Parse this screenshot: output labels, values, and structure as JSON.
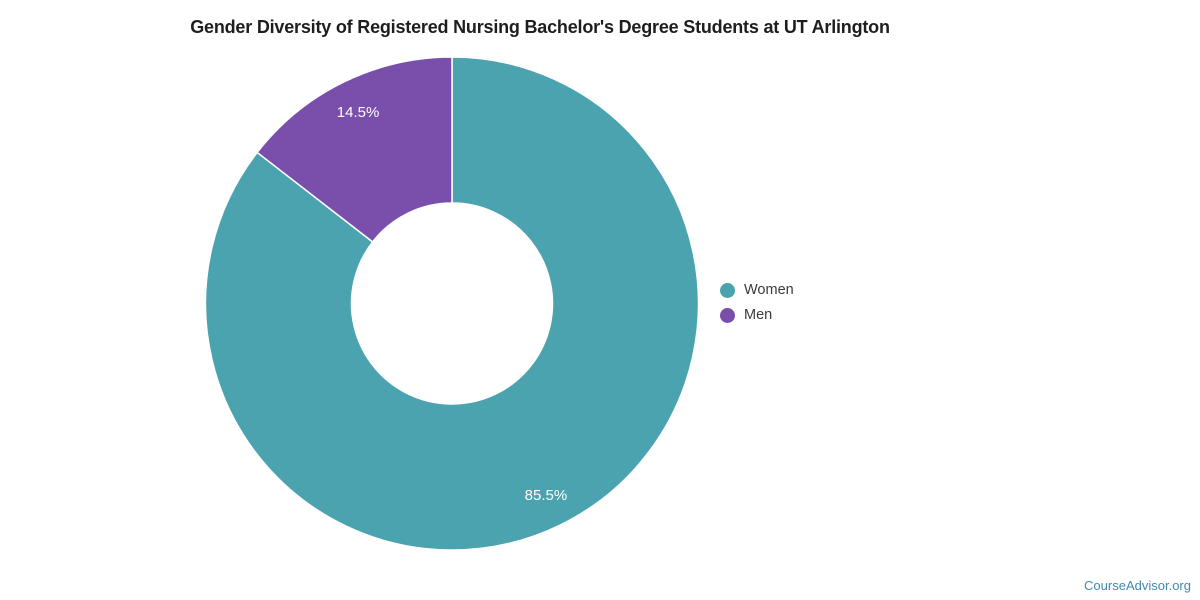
{
  "page": {
    "watermark": "CourseAdvisor.org"
  },
  "chart_data": {
    "type": "pie",
    "subtype": "donut",
    "title": "Gender Diversity of Registered Nursing Bachelor's Degree Students at UT Arlington",
    "categories": [
      "Women",
      "Men"
    ],
    "values": [
      85.5,
      14.5
    ],
    "data_labels": [
      "85.5%",
      "14.5%"
    ],
    "colors": [
      "#4aa3ae",
      "#7a4fab"
    ],
    "data_label_color": "#ffffff",
    "legend_position": "right",
    "legend_marker_shape": "circle",
    "start_angle_deg": 0,
    "direction": "clockwise"
  }
}
